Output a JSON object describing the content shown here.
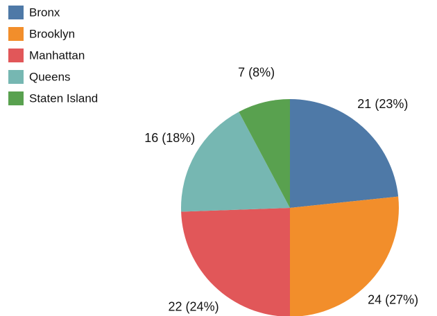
{
  "chart_data": {
    "type": "pie",
    "categories": [
      "Bronx",
      "Brooklyn",
      "Manhattan",
      "Queens",
      "Staten Island"
    ],
    "values": [
      21,
      24,
      22,
      16,
      7
    ],
    "value_labels": [
      "21 (23%)",
      "24 (27%)",
      "22 (24%)",
      "16 (18%)",
      "7 (8%)"
    ],
    "colors": [
      "#4e79a7",
      "#f28e2b",
      "#e15759",
      "#76b7b2",
      "#59a14f"
    ],
    "legend": "top-left"
  }
}
